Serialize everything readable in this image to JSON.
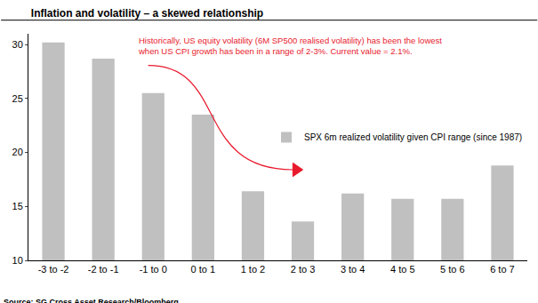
{
  "chart_data": {
    "type": "bar",
    "title": "Inflation and volatility – a skewed relationship",
    "annotation": [
      "Historically, US equity volatility (6M SP500 realised volatility) has been the lowest",
      "when US CPI growth has been in a range of 2-3%. Current value = 2.1%."
    ],
    "source": "Source: SG Cross Asset Research/Bloomberg",
    "categories": [
      "-3 to -2",
      "-2 to -1",
      "-1 to 0",
      "0 to 1",
      "1 to 2",
      "2 to 3",
      "3 to 4",
      "4 to 5",
      "5 to 6",
      "6 to 7"
    ],
    "series": [
      {
        "name": "SPX 6m realized volatility given CPI range (since 1987)",
        "color": "#c0c0c0",
        "values": [
          30.2,
          28.7,
          25.5,
          23.5,
          16.4,
          13.6,
          16.2,
          15.7,
          15.7,
          18.8
        ]
      }
    ],
    "ylim": [
      10,
      31
    ],
    "yticks": [
      10,
      15,
      20,
      25,
      30
    ],
    "grid": false,
    "legend": "right"
  }
}
